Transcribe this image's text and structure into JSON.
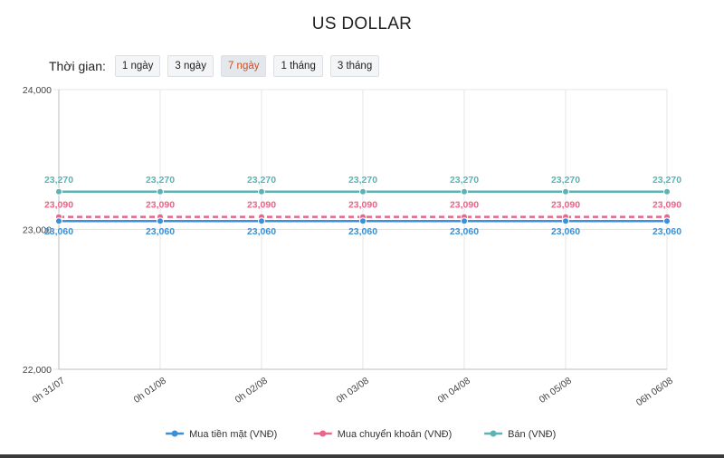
{
  "title": "US DOLLAR",
  "range": {
    "label": "Thời gian:",
    "options": [
      "1 ngày",
      "3 ngày",
      "7 ngày",
      "1 tháng",
      "3 tháng"
    ],
    "active_index": 2
  },
  "chart_data": {
    "type": "line",
    "categories": [
      "0h 31/07",
      "0h 01/08",
      "0h 02/08",
      "0h 03/08",
      "0h 04/08",
      "0h 05/08",
      "06h 06/08"
    ],
    "ylim": [
      22000,
      24000
    ],
    "y_ticks": [
      "22,000",
      "23,000",
      "24,000"
    ],
    "y_tick_values": [
      22000,
      23000,
      24000
    ],
    "grid": true,
    "legend_position": "bottom",
    "series": [
      {
        "name": "Bán (VNĐ)",
        "values": [
          23270,
          23270,
          23270,
          23270,
          23270,
          23270,
          23270
        ],
        "labels": [
          "23,270",
          "23,270",
          "23,270",
          "23,270",
          "23,270",
          "23,270",
          "23,270"
        ],
        "color": "#5bb3b3",
        "dashed": false,
        "label_position": "above"
      },
      {
        "name": "Mua chuyển khoản (VNĐ)",
        "values": [
          23090,
          23090,
          23090,
          23090,
          23090,
          23090,
          23090
        ],
        "labels": [
          "23,090",
          "23,090",
          "23,090",
          "23,090",
          "23,090",
          "23,090",
          "23,090"
        ],
        "color": "#e8668a",
        "dashed": true,
        "label_position": "above"
      },
      {
        "name": "Mua tiền mặt (VNĐ)",
        "values": [
          23060,
          23060,
          23060,
          23060,
          23060,
          23060,
          23060
        ],
        "labels": [
          "23,060",
          "23,060",
          "23,060",
          "23,060",
          "23,060",
          "23,060",
          "23,060"
        ],
        "color": "#3d8fd6",
        "dashed": false,
        "label_position": "below"
      }
    ],
    "legend_order": [
      2,
      1,
      0
    ]
  }
}
